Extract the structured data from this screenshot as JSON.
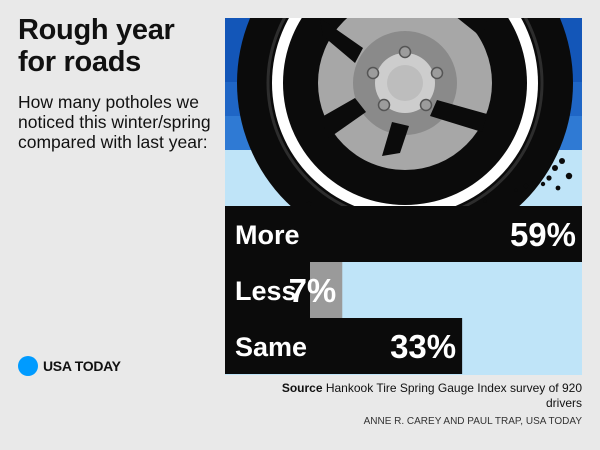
{
  "header": {
    "title": "Rough year for roads",
    "subtitle": "How many potholes we noticed this winter/spring compared with last year:"
  },
  "brand": {
    "name": "USA TODAY",
    "dot_color": "#009bff"
  },
  "footer": {
    "source_label": "Source",
    "source_text": "Hankook Tire Spring Gauge Index survey of 920 drivers",
    "credit": "ANNE R. CAREY AND PAUL TRAP, USA TODAY"
  },
  "colors": {
    "dark_bar": "#0b0b0b",
    "gray_bar": "#9a9a9a",
    "tire": "#0b0b0b",
    "hubcap": "#a7a7a7",
    "sky_dark": "#1356b8",
    "sky_mid": "#2f7ad4",
    "sky_light": "#bfe4f8"
  },
  "chart_data": {
    "type": "bar",
    "orientation": "horizontal",
    "categories": [
      "More",
      "Less",
      "Same"
    ],
    "values": [
      59,
      7,
      33
    ],
    "value_labels": [
      "59%",
      "7%",
      "33%"
    ],
    "unit": "%"
  }
}
